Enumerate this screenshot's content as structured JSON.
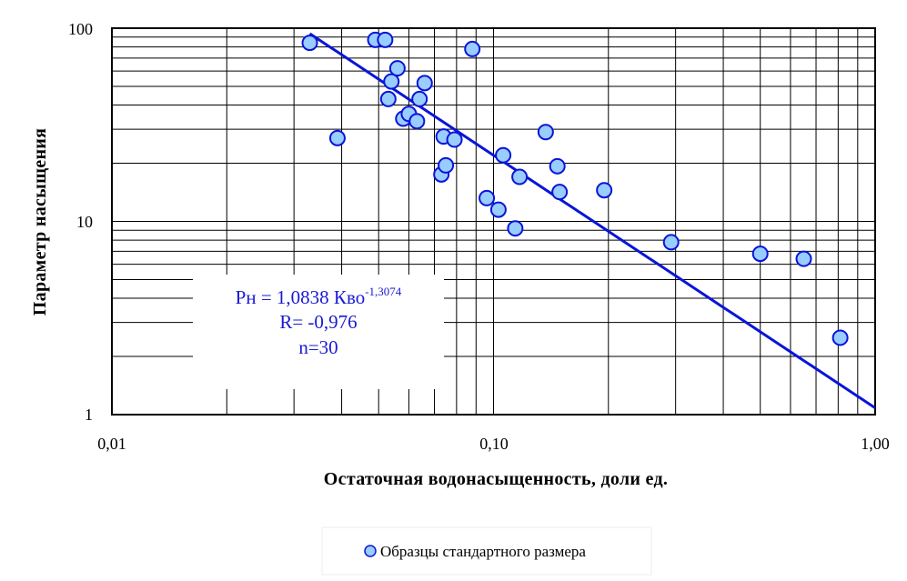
{
  "chart_data": {
    "type": "scatter",
    "title": "",
    "xlabel": "Остаточная водонасыщенность, доли ед.",
    "ylabel": "Параметр насыщения",
    "x_scale": "log",
    "y_scale": "log",
    "xlim": [
      0.01,
      1.0
    ],
    "ylim": [
      1,
      100
    ],
    "x_tick_labels": [
      "0,01",
      "0,10",
      "1,00"
    ],
    "y_tick_labels": [
      "1",
      "10",
      "100"
    ],
    "grid": true,
    "legend": "bottom",
    "series": [
      {
        "name": "Образцы стандартного размера",
        "color": "#99ccff",
        "points": [
          {
            "x": 0.033,
            "y": 84
          },
          {
            "x": 0.039,
            "y": 27
          },
          {
            "x": 0.049,
            "y": 87
          },
          {
            "x": 0.052,
            "y": 87
          },
          {
            "x": 0.054,
            "y": 53
          },
          {
            "x": 0.053,
            "y": 43
          },
          {
            "x": 0.056,
            "y": 62
          },
          {
            "x": 0.058,
            "y": 34
          },
          {
            "x": 0.06,
            "y": 36
          },
          {
            "x": 0.063,
            "y": 33
          },
          {
            "x": 0.064,
            "y": 43
          },
          {
            "x": 0.066,
            "y": 52
          },
          {
            "x": 0.073,
            "y": 17.5
          },
          {
            "x": 0.074,
            "y": 27.5
          },
          {
            "x": 0.075,
            "y": 19.5
          },
          {
            "x": 0.079,
            "y": 26.5
          },
          {
            "x": 0.088,
            "y": 78
          },
          {
            "x": 0.096,
            "y": 13.2
          },
          {
            "x": 0.103,
            "y": 11.5
          },
          {
            "x": 0.106,
            "y": 22
          },
          {
            "x": 0.114,
            "y": 9.2
          },
          {
            "x": 0.117,
            "y": 17
          },
          {
            "x": 0.137,
            "y": 29
          },
          {
            "x": 0.147,
            "y": 19.3
          },
          {
            "x": 0.149,
            "y": 14.2
          },
          {
            "x": 0.195,
            "y": 14.5
          },
          {
            "x": 0.292,
            "y": 7.8
          },
          {
            "x": 0.5,
            "y": 6.8
          },
          {
            "x": 0.65,
            "y": 6.4
          },
          {
            "x": 0.81,
            "y": 2.5
          }
        ]
      }
    ],
    "trendline": {
      "type": "power",
      "coefficient": 1.0838,
      "exponent": -1.3074,
      "color": "#0a14d8",
      "x_range": [
        0.033,
        1.0
      ]
    },
    "annotation": {
      "equation_main": "Рн = 1,0838 Кво",
      "equation_exponent": "-1,3074",
      "r_text": "R= -0,976",
      "n_text": "n=30"
    }
  }
}
